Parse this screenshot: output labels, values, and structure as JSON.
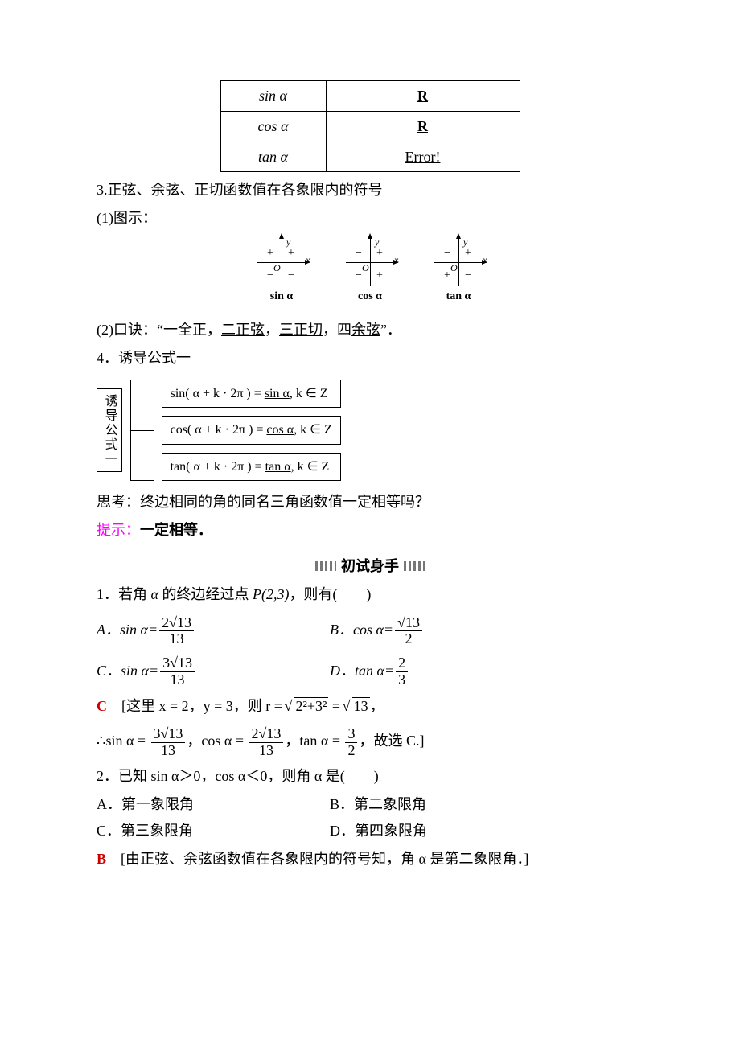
{
  "table": {
    "rows": [
      {
        "func": "sin α",
        "domain": "R",
        "domain_bold": true,
        "underline": true
      },
      {
        "func": "cos α",
        "domain": "R",
        "domain_bold": true,
        "underline": true
      },
      {
        "func": "tan α",
        "domain": "Error!",
        "domain_bold": false,
        "underline": true
      }
    ]
  },
  "heading3": "3.正弦、余弦、正切函数值在各象限内的符号",
  "sub1": "(1)图示：",
  "signs": {
    "diagrams": [
      {
        "q1": "+",
        "q2": "+",
        "q3": "−",
        "q4": "−",
        "label": "sin α"
      },
      {
        "q1": "+",
        "q2": "−",
        "q3": "−",
        "q4": "+",
        "label": "cos α"
      },
      {
        "q1": "+",
        "q2": "−",
        "q3": "+",
        "q4": "−",
        "label": "tan α"
      }
    ],
    "axis_y": "y",
    "axis_x": "x",
    "origin": "O"
  },
  "sub2_pre": "(2)口诀：“一全正，",
  "sub2_u1": "二正弦",
  "sub2_mid1": "，",
  "sub2_u2": "三正切",
  "sub2_mid2": "，四",
  "sub2_u3": "余弦",
  "sub2_post": "”．",
  "heading4": "4．诱导公式一",
  "formula_label": "诱导公式一",
  "formulas": {
    "f1_l": "sin( α + k · 2π )  =  ",
    "f1_u": "sin α",
    "f1_r": ", k ∈ Z",
    "f2_l": "cos( α + k · 2π )  =  ",
    "f2_u": "cos α",
    "f2_r": ", k ∈ Z",
    "f3_l": "tan( α + k · 2π )  =  ",
    "f3_u": "tan α",
    "f3_r": ", k ∈ Z"
  },
  "think_label": "思考：",
  "think_text": "终边相同的角的同名三角函数值一定相等吗？",
  "hint_label": "提示：",
  "hint_text": "一定相等．",
  "section_banner": "初试身手",
  "q1_text_pre": "1．若角 ",
  "alpha": "α",
  "q1_text_mid": " 的终边经过点 ",
  "q1_point": "P(2,3)",
  "q1_text_post": "，则有(　　)",
  "q1_opts": {
    "A_label": "A．sin α=",
    "A_num": "2√13",
    "A_den": "13",
    "B_label": "B．cos α=",
    "B_num": "√13",
    "B_den": "2",
    "C_label": "C．sin α=",
    "C_num": "3√13",
    "C_den": "13",
    "D_label": "D．tan α=",
    "D_num": "2",
    "D_den": "3"
  },
  "q1_answer": "C",
  "q1_sol_pre": "　[这里 x = 2，y = 3，则 r = ",
  "q1_sol_sqrt1": "2²+3²",
  "q1_sol_eq": " = ",
  "q1_sol_sqrt2": "13",
  "q1_sol_comma": "，",
  "q1_sol2_pre": "∴sin α = ",
  "q1_sol2_n1": "3√13",
  "q1_sol2_d1": "13",
  "q1_sol2_m1": "，cos α = ",
  "q1_sol2_n2": "2√13",
  "q1_sol2_d2": "13",
  "q1_sol2_m2": "，tan α = ",
  "q1_sol2_n3": "3",
  "q1_sol2_d3": "2",
  "q1_sol2_post": "，故选 C.]",
  "q2_text": "2．已知 sin α＞0，cos α＜0，则角 α 是(　　)",
  "q2_opts": {
    "A": "A．第一象限角",
    "B": "B．第二象限角",
    "C": "C．第三象限角",
    "D": "D．第四象限角"
  },
  "q2_answer": "B",
  "q2_sol": "　[由正弦、余弦函数值在各象限内的符号知，角 α 是第二象限角．]",
  "colors": {
    "text": "#000000",
    "answer_red": "#d00000",
    "hint_pink": "#ff00ff",
    "background": "#ffffff"
  }
}
